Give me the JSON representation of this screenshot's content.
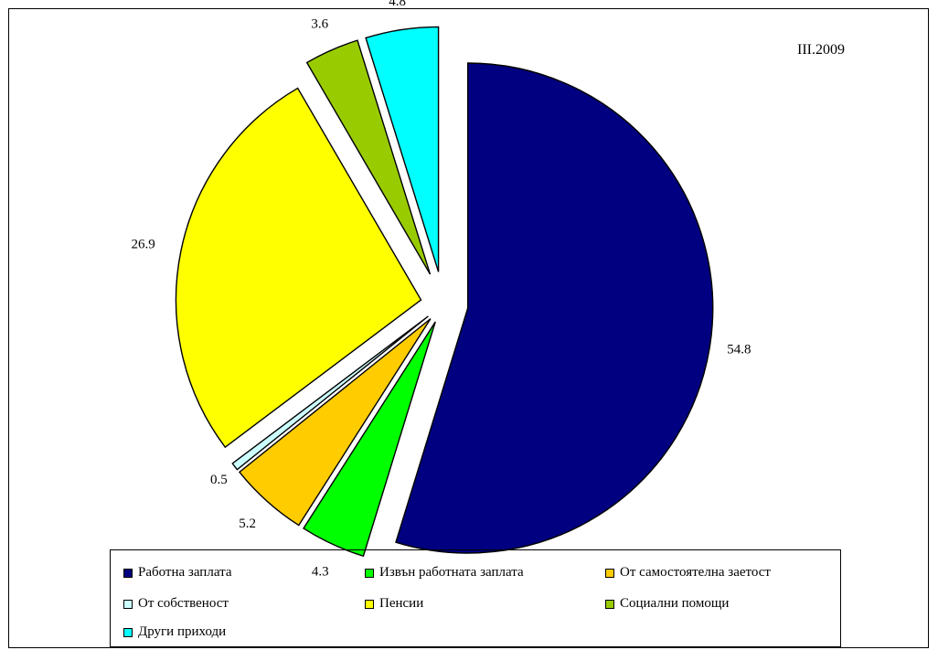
{
  "chart_data": {
    "type": "pie",
    "annotation": "III.2009",
    "slices": [
      {
        "label": "Работна заплата",
        "value": 54.8,
        "color": "#000080"
      },
      {
        "label": "Извън работната заплата",
        "value": 4.3,
        "color": "#00ff00"
      },
      {
        "label": "От самостоятелна заетост",
        "value": 5.2,
        "color": "#ffcc00"
      },
      {
        "label": "От собственост",
        "value": 0.5,
        "color": "#ccffff"
      },
      {
        "label": "Пенсии",
        "value": 26.9,
        "color": "#ffff00"
      },
      {
        "label": "Социални помощи",
        "value": 3.6,
        "color": "#99cc00"
      },
      {
        "label": "Други приходи",
        "value": 4.8,
        "color": "#00ffff"
      }
    ],
    "legend_position": "bottom"
  }
}
